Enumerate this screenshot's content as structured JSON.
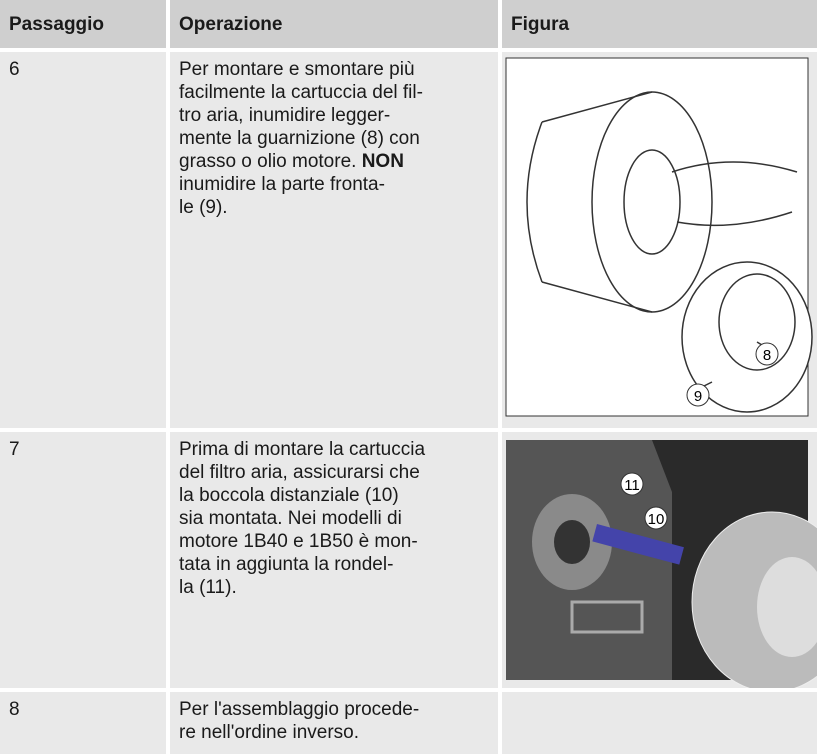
{
  "table": {
    "header": [
      "Passaggio",
      "Operazione",
      "Figura"
    ],
    "rows": [
      {
        "step": "6",
        "operation": [
          "Per montare e smontare più",
          "facilmente la cartuccia del fil-",
          "tro aria, inumidire legger-",
          "mente la guarnizione (8) con",
          {
            "text": "grasso o olio motore.",
            "bold": "NON"
          },
          "inumidire la parte fronta-",
          "le (9)."
        ],
        "figure_labels": [
          "8",
          "9"
        ]
      },
      {
        "step": "7",
        "operation": [
          "Prima di montare la cartuccia",
          "del filtro aria, assicurarsi che",
          "la boccola distanziale (10)",
          "sia montata. Nei modelli di",
          "motore 1B40 e 1B50 è mon-",
          "tata in aggiunta la rondel-",
          "la (11)."
        ],
        "figure_labels": [
          "11",
          "10"
        ]
      },
      {
        "step": "8",
        "operation": [
          "Per l'assemblaggio procede-",
          "re nell'ordine inverso."
        ]
      }
    ]
  }
}
